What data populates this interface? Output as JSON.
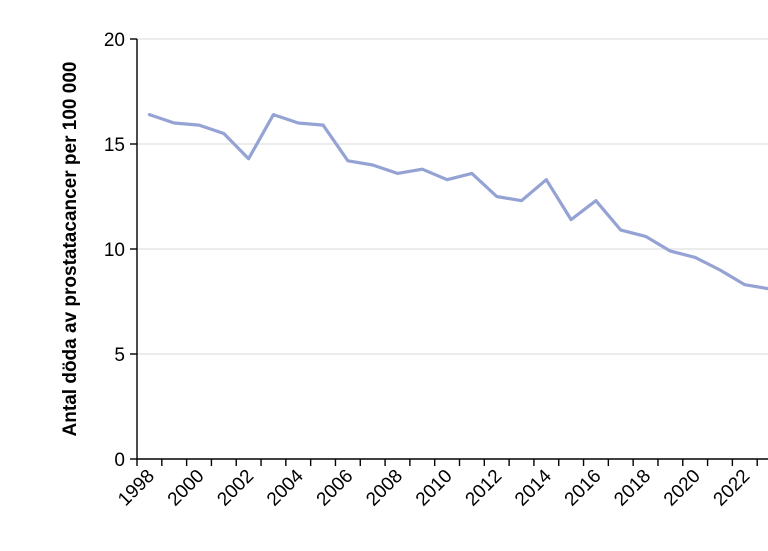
{
  "chart_data": {
    "type": "line",
    "title": "",
    "xlabel": "",
    "ylabel": "Antal döda av prostatacancer per 100 000",
    "years": [
      1998,
      1999,
      2000,
      2001,
      2002,
      2003,
      2004,
      2005,
      2006,
      2007,
      2008,
      2009,
      2010,
      2011,
      2012,
      2013,
      2014,
      2015,
      2016,
      2017,
      2018,
      2019,
      2020,
      2021,
      2022,
      2023
    ],
    "values": [
      16.4,
      16.0,
      15.9,
      15.5,
      14.3,
      16.4,
      16.0,
      15.9,
      14.2,
      14.0,
      13.6,
      13.8,
      13.3,
      13.6,
      12.5,
      12.3,
      13.3,
      11.4,
      12.3,
      10.9,
      10.6,
      9.9,
      9.6,
      9.0,
      8.3,
      8.1
    ],
    "ylim": [
      0,
      20
    ],
    "yticks": [
      0,
      5,
      10,
      15,
      20
    ],
    "xtick_label_step": 2,
    "xtick_labels_shown": [
      "1998",
      "2000",
      "2002",
      "2004",
      "2006",
      "2008",
      "2010",
      "2012",
      "2014",
      "2016",
      "2018",
      "2020",
      "2022"
    ],
    "grid": "horizontal",
    "legend": "none",
    "colors": {
      "line": "#94a2d4",
      "gridline": "#d9d9d9",
      "axis": "#000000",
      "text": "#000000",
      "background": "#ffffff"
    }
  }
}
